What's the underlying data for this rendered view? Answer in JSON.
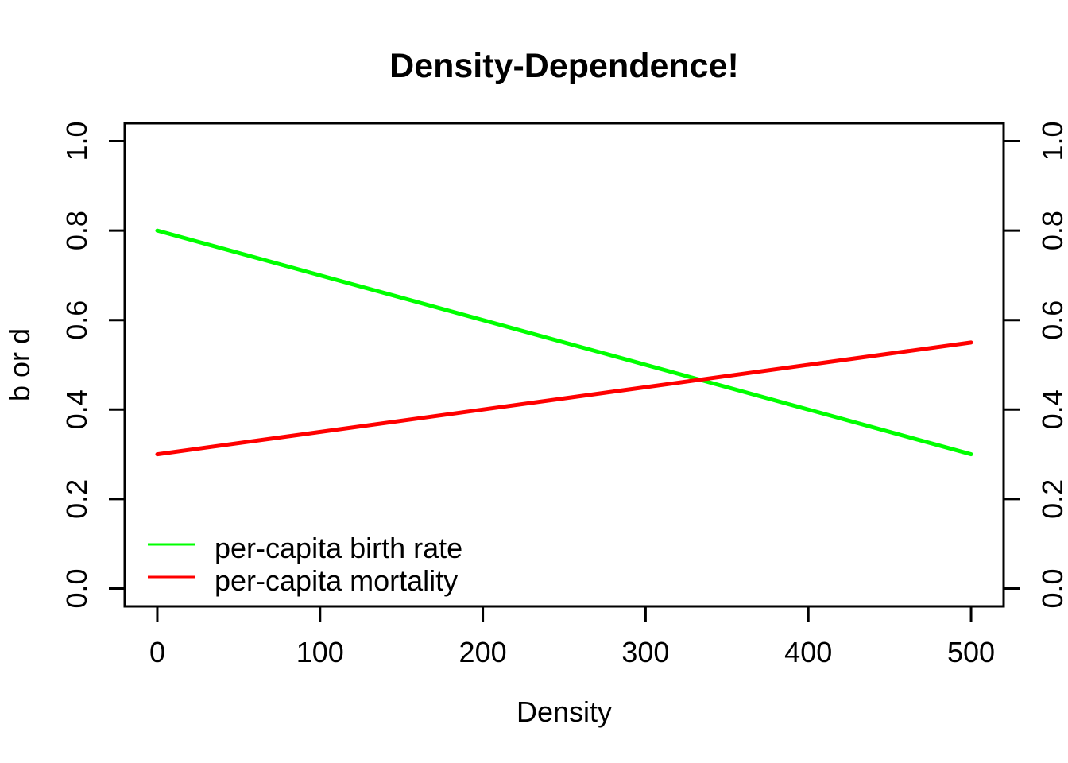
{
  "figure": {
    "background": "#FFFFFF",
    "axis_color": "#000000"
  },
  "chart_data": {
    "type": "line",
    "title": "Density-Dependence!",
    "xlabel": "Density",
    "ylabel": "b or d",
    "xlim": [
      0,
      500
    ],
    "ylim": [
      0.0,
      1.0
    ],
    "xticks": [
      0,
      100,
      200,
      300,
      400,
      500
    ],
    "xtick_labels": [
      "0",
      "100",
      "200",
      "300",
      "400",
      "500"
    ],
    "yticks": [
      0.0,
      0.2,
      0.4,
      0.6,
      0.8,
      1.0
    ],
    "ytick_labels": [
      "0.0",
      "0.2",
      "0.4",
      "0.6",
      "0.8",
      "1.0"
    ],
    "axes": {
      "color": "#000000",
      "grid": false,
      "box": true,
      "mirrored_right_y_axis": true,
      "tick_label_rotation_y": -90
    },
    "series": [
      {
        "key": "birth-rate",
        "name": "per-capita birth rate",
        "color": "#00FF00",
        "points": [
          {
            "x": 0,
            "y": 0.8
          },
          {
            "x": 500,
            "y": 0.3
          }
        ]
      },
      {
        "key": "mortality",
        "name": "per-capita mortality",
        "color": "#FF0000",
        "points": [
          {
            "x": 0,
            "y": 0.3
          },
          {
            "x": 500,
            "y": 0.55
          }
        ]
      }
    ],
    "legend": {
      "position": "bottom-left",
      "frame": false,
      "entries": [
        "per-capita birth rate",
        "per-capita mortality"
      ]
    }
  }
}
